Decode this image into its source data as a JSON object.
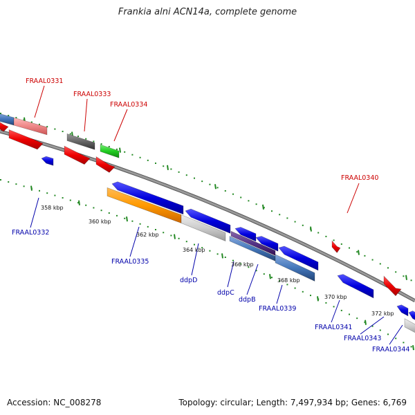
{
  "title": "Frankia alni ACN14a, complete genome",
  "footer": {
    "accession": "Accession: NC_008278",
    "summary": "Topology: circular; Length: 7,497,934 bp; Genes: 6,769"
  },
  "scale_labels": [
    "358 kbp",
    "360 kbp",
    "362 kbp",
    "364 kbp",
    "366 kbp",
    "368 kbp",
    "370 kbp",
    "372 kbp"
  ],
  "genes_top": [
    "FRAAL0331",
    "FRAAL0333",
    "FRAAL0334",
    "FRAAL0340"
  ],
  "genes_bottom": [
    "FRAAL0332",
    "FRAAL0335",
    "ddpD",
    "ddpC",
    "ddpB",
    "FRAAL0339",
    "FRAAL0341",
    "FRAAL0343",
    "FRAAL0344"
  ],
  "colors": {
    "forward_cds": "#dd0000",
    "reverse_cds": "#0000dd",
    "backbone": "#888888",
    "ticks": "#228822",
    "label_top": "#cc0000",
    "label_bottom": "#0000aa"
  }
}
